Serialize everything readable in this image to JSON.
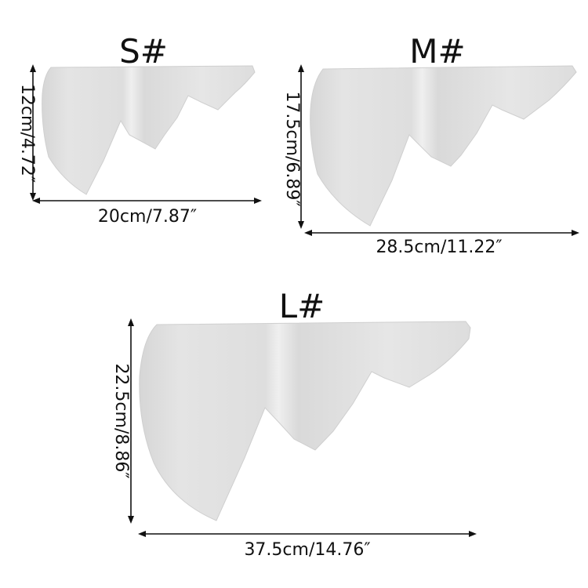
{
  "sizes": [
    {
      "id": "S",
      "label": "S#",
      "width_text": "20cm/7.87″",
      "height_text": "12cm/4.72″",
      "width_cm": 20,
      "height_cm": 12
    },
    {
      "id": "M",
      "label": "M#",
      "width_text": "28.5cm/11.22″",
      "height_text": "17.5cm/6.89″",
      "width_cm": 28.5,
      "height_cm": 17.5
    },
    {
      "id": "L",
      "label": "L#",
      "width_text": "37.5cm/14.76″",
      "height_text": "22.5cm/8.86″",
      "width_cm": 37.5,
      "height_cm": 22.5
    }
  ],
  "colors": {
    "shelf_light": "#eeeeee",
    "shelf_mid": "#dcdcdc",
    "shelf_dark": "#c8c8c8",
    "line": "#111111"
  }
}
